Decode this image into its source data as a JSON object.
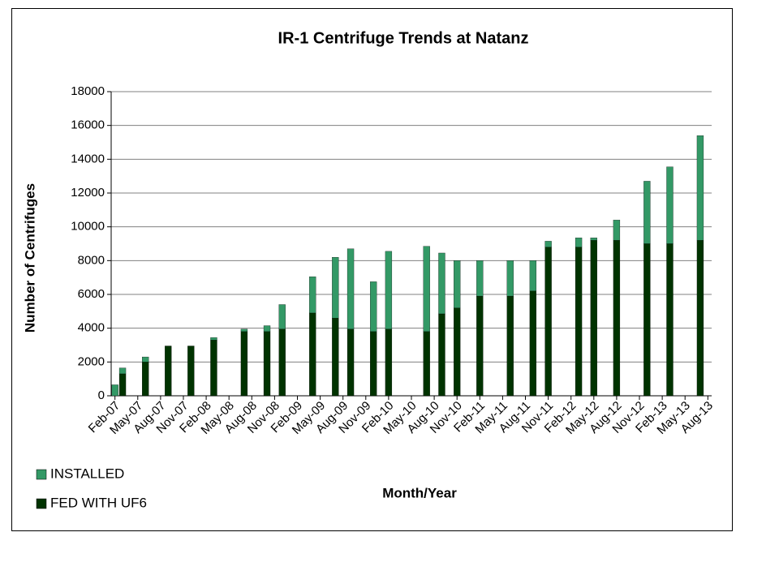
{
  "chart_data": {
    "type": "bar",
    "stacked": true,
    "title": "IR-1 Centrifuge Trends at Natanz",
    "y_label": "Number of Centrifuges",
    "x_label": "Month/Year",
    "categories": [
      "Feb-07",
      null,
      null,
      "May-07",
      null,
      null,
      "Aug-07",
      null,
      null,
      "Nov-07",
      null,
      null,
      "Feb-08",
      null,
      null,
      "May-08",
      null,
      null,
      "Aug-08",
      null,
      null,
      "Nov-08",
      null,
      null,
      "Feb-09",
      null,
      null,
      "May-09",
      null,
      null,
      "Aug-09",
      null,
      null,
      "Nov-09",
      null,
      null,
      "Feb-10",
      null,
      null,
      "May-10",
      null,
      null,
      "Aug-10",
      null,
      null,
      "Nov-10",
      null,
      null,
      "Feb-11",
      null,
      null,
      "May-11",
      null,
      null,
      "Aug-11",
      null,
      null,
      "Nov-11",
      null,
      null,
      "Feb-12",
      null,
      null,
      "May-12",
      null,
      null,
      "Aug-12",
      null,
      null,
      "Nov-12",
      null,
      null,
      "Feb-13",
      null,
      null,
      "May-13",
      null,
      null,
      "Aug-13"
    ],
    "series": [
      {
        "name": "FED WITH UF6",
        "color": "#003300",
        "values": [
          null,
          1300,
          null,
          null,
          2000,
          null,
          null,
          2950,
          null,
          null,
          2950,
          null,
          null,
          3300,
          null,
          null,
          null,
          3800,
          null,
          null,
          3800,
          null,
          3950,
          null,
          null,
          null,
          4900,
          null,
          null,
          4600,
          null,
          3950,
          null,
          null,
          3800,
          null,
          3950,
          null,
          null,
          null,
          null,
          3800,
          null,
          4850,
          null,
          5200,
          null,
          null,
          5900,
          null,
          null,
          null,
          5900,
          null,
          null,
          6200,
          null,
          8800,
          null,
          null,
          null,
          8800,
          null,
          9200,
          null,
          null,
          9200,
          null,
          null,
          null,
          9000,
          null,
          null,
          9000,
          null,
          null,
          null,
          9200,
          null
        ]
      },
      {
        "name": "INSTALLED",
        "color": "#339966",
        "values": [
          650,
          350,
          null,
          null,
          300,
          null,
          null,
          0,
          null,
          null,
          0,
          null,
          null,
          150,
          null,
          null,
          null,
          150,
          null,
          null,
          350,
          null,
          1450,
          null,
          null,
          null,
          2150,
          null,
          null,
          3600,
          null,
          4750,
          null,
          null,
          2950,
          null,
          4600,
          null,
          null,
          null,
          null,
          5050,
          null,
          3600,
          null,
          2800,
          null,
          null,
          2100,
          null,
          null,
          null,
          2100,
          null,
          null,
          1800,
          null,
          350,
          null,
          null,
          null,
          550,
          null,
          150,
          null,
          null,
          1200,
          null,
          null,
          null,
          3700,
          null,
          null,
          4550,
          null,
          null,
          null,
          6200,
          null
        ]
      }
    ],
    "ylim": [
      0,
      18000
    ],
    "yticks": [
      0,
      2000,
      4000,
      6000,
      8000,
      10000,
      12000,
      14000,
      16000,
      18000
    ],
    "grid": true,
    "legend": "bottom-left"
  }
}
